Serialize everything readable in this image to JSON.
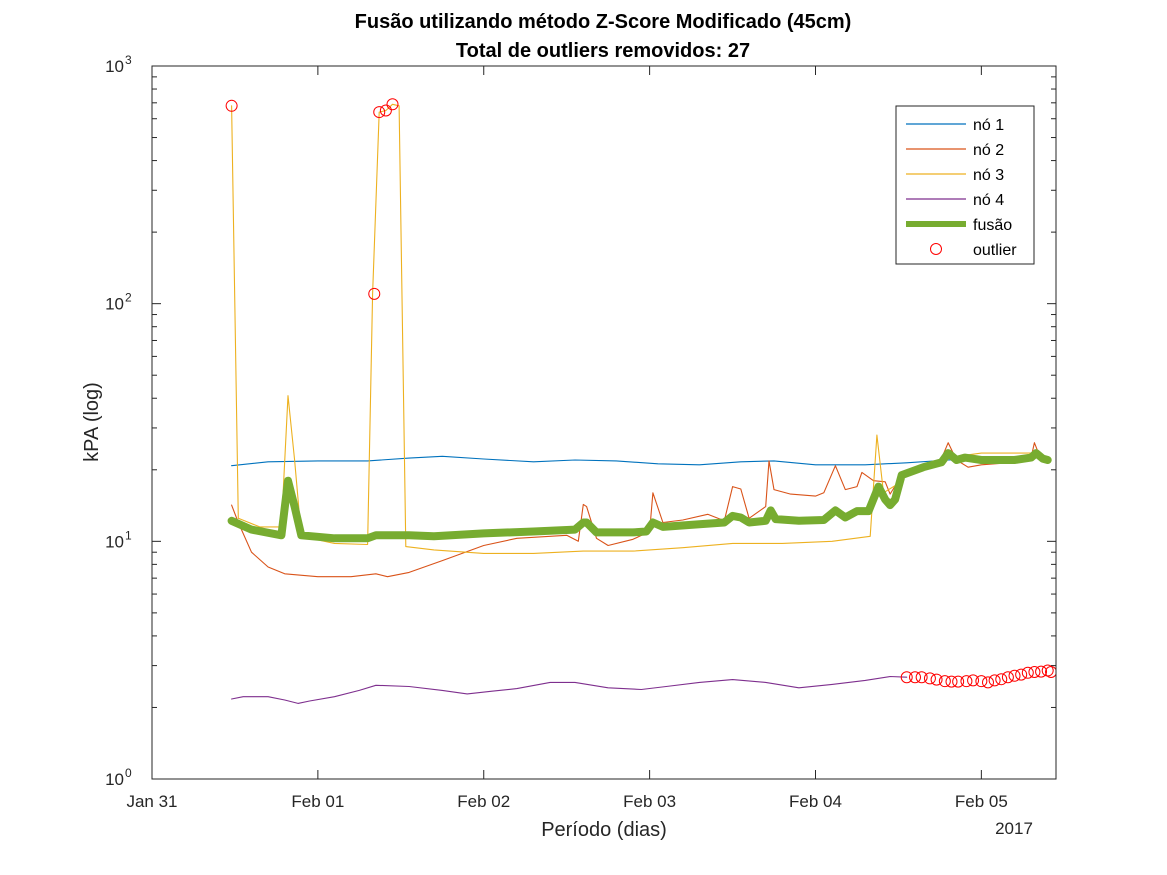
{
  "chart_data": {
    "type": "line",
    "title": "Fusão utilizando método Z-Score Modificado (45cm)",
    "subtitle": "Total de outliers removidos: 27",
    "xlabel": "Período (dias)",
    "ylabel": "kPA (log)",
    "x_axis_year": "2017",
    "y_scale": "log",
    "x_units": "days since Jan 31 00:00",
    "xlim": [
      0,
      5.45
    ],
    "ylim": [
      1,
      1000
    ],
    "grid": false,
    "legend_placement": "top-right",
    "x_ticks": [
      {
        "value": 0,
        "label": "Jan 31"
      },
      {
        "value": 1,
        "label": "Feb 01"
      },
      {
        "value": 2,
        "label": "Feb 02"
      },
      {
        "value": 3,
        "label": "Feb 03"
      },
      {
        "value": 4,
        "label": "Feb 04"
      },
      {
        "value": 5,
        "label": "Feb 05"
      }
    ],
    "y_ticks": [
      {
        "value": 1,
        "base": "10",
        "exp": "0"
      },
      {
        "value": 10,
        "base": "10",
        "exp": "1"
      },
      {
        "value": 100,
        "base": "10",
        "exp": "2"
      },
      {
        "value": 1000,
        "base": "10",
        "exp": "3"
      }
    ],
    "series": [
      {
        "name": "nó 1",
        "color": "#0072BD",
        "style": "line",
        "points": [
          [
            0.48,
            20.8
          ],
          [
            0.7,
            21.6
          ],
          [
            1.0,
            21.8
          ],
          [
            1.3,
            21.8
          ],
          [
            1.55,
            22.4
          ],
          [
            1.75,
            22.8
          ],
          [
            2.0,
            22.2
          ],
          [
            2.3,
            21.6
          ],
          [
            2.55,
            22.0
          ],
          [
            2.8,
            21.8
          ],
          [
            3.05,
            21.2
          ],
          [
            3.3,
            21.0
          ],
          [
            3.55,
            21.6
          ],
          [
            3.75,
            21.8
          ],
          [
            4.0,
            21.0
          ],
          [
            4.3,
            21.0
          ],
          [
            4.55,
            21.4
          ],
          [
            4.8,
            22.0
          ],
          [
            5.05,
            22.2
          ],
          [
            5.3,
            22.6
          ],
          [
            5.4,
            22.4
          ]
        ]
      },
      {
        "name": "nó 2",
        "color": "#D95319",
        "style": "line",
        "points": [
          [
            0.48,
            14.2
          ],
          [
            0.52,
            12.0
          ],
          [
            0.6,
            9.0
          ],
          [
            0.7,
            7.8
          ],
          [
            0.8,
            7.3
          ],
          [
            1.0,
            7.1
          ],
          [
            1.2,
            7.1
          ],
          [
            1.35,
            7.3
          ],
          [
            1.42,
            7.1
          ],
          [
            1.55,
            7.4
          ],
          [
            1.75,
            8.3
          ],
          [
            2.0,
            9.6
          ],
          [
            2.2,
            10.3
          ],
          [
            2.5,
            10.6
          ],
          [
            2.57,
            10.0
          ],
          [
            2.6,
            14.3
          ],
          [
            2.62,
            14.0
          ],
          [
            2.68,
            10.3
          ],
          [
            2.75,
            9.6
          ],
          [
            2.9,
            10.2
          ],
          [
            3.0,
            11.0
          ],
          [
            3.02,
            16.0
          ],
          [
            3.08,
            12.0
          ],
          [
            3.2,
            12.3
          ],
          [
            3.35,
            13.0
          ],
          [
            3.45,
            12.2
          ],
          [
            3.5,
            17.0
          ],
          [
            3.55,
            16.6
          ],
          [
            3.6,
            12.5
          ],
          [
            3.7,
            14.0
          ],
          [
            3.72,
            21.8
          ],
          [
            3.75,
            16.5
          ],
          [
            3.85,
            15.8
          ],
          [
            4.0,
            15.5
          ],
          [
            4.05,
            16.0
          ],
          [
            4.12,
            20.8
          ],
          [
            4.18,
            16.5
          ],
          [
            4.25,
            17.0
          ],
          [
            4.28,
            19.5
          ],
          [
            4.35,
            18.0
          ],
          [
            4.42,
            17.8
          ],
          [
            4.45,
            15.8
          ],
          [
            4.52,
            19.0
          ],
          [
            4.65,
            20.0
          ],
          [
            4.75,
            21.5
          ],
          [
            4.8,
            26.0
          ],
          [
            4.85,
            22.0
          ],
          [
            4.92,
            20.5
          ],
          [
            5.0,
            21.0
          ],
          [
            5.2,
            21.5
          ],
          [
            5.3,
            22.5
          ],
          [
            5.32,
            26.0
          ],
          [
            5.35,
            23.0
          ],
          [
            5.4,
            21.5
          ]
        ]
      },
      {
        "name": "nó 3",
        "color": "#EDB120",
        "style": "line",
        "points": [
          [
            0.48,
            680
          ],
          [
            0.52,
            12.5
          ],
          [
            0.65,
            11.5
          ],
          [
            0.78,
            11.5
          ],
          [
            0.82,
            41.0
          ],
          [
            0.86,
            22.0
          ],
          [
            0.9,
            10.5
          ],
          [
            1.1,
            9.8
          ],
          [
            1.3,
            9.7
          ],
          [
            1.33,
            110
          ],
          [
            1.37,
            640
          ],
          [
            1.41,
            650
          ],
          [
            1.45,
            690
          ],
          [
            1.49,
            680
          ],
          [
            1.53,
            9.5
          ],
          [
            1.7,
            9.2
          ],
          [
            2.0,
            8.9
          ],
          [
            2.3,
            8.9
          ],
          [
            2.6,
            9.1
          ],
          [
            2.9,
            9.1
          ],
          [
            3.2,
            9.4
          ],
          [
            3.5,
            9.8
          ],
          [
            3.8,
            9.8
          ],
          [
            4.1,
            10.0
          ],
          [
            4.33,
            10.5
          ],
          [
            4.37,
            28.0
          ],
          [
            4.41,
            16.0
          ],
          [
            4.5,
            17.5
          ],
          [
            4.6,
            20.5
          ],
          [
            4.8,
            22.5
          ],
          [
            5.0,
            23.5
          ],
          [
            5.3,
            23.5
          ],
          [
            5.4,
            22.5
          ]
        ]
      },
      {
        "name": "nó 4",
        "color": "#7E2F8E",
        "style": "line",
        "points": [
          [
            0.48,
            2.17
          ],
          [
            0.55,
            2.22
          ],
          [
            0.7,
            2.22
          ],
          [
            0.8,
            2.15
          ],
          [
            0.88,
            2.08
          ],
          [
            0.95,
            2.13
          ],
          [
            1.1,
            2.22
          ],
          [
            1.25,
            2.36
          ],
          [
            1.35,
            2.48
          ],
          [
            1.55,
            2.45
          ],
          [
            1.75,
            2.36
          ],
          [
            1.9,
            2.28
          ],
          [
            2.05,
            2.34
          ],
          [
            2.2,
            2.4
          ],
          [
            2.4,
            2.55
          ],
          [
            2.55,
            2.55
          ],
          [
            2.75,
            2.42
          ],
          [
            2.95,
            2.38
          ],
          [
            3.1,
            2.45
          ],
          [
            3.3,
            2.55
          ],
          [
            3.5,
            2.62
          ],
          [
            3.7,
            2.55
          ],
          [
            3.9,
            2.42
          ],
          [
            4.1,
            2.5
          ],
          [
            4.3,
            2.6
          ],
          [
            4.45,
            2.7
          ],
          [
            4.55,
            2.68
          ]
        ]
      },
      {
        "name": "fusão",
        "color": "#77AC30",
        "style": "thick",
        "points": [
          [
            0.48,
            12.2
          ],
          [
            0.6,
            11.2
          ],
          [
            0.78,
            10.6
          ],
          [
            0.82,
            18.0
          ],
          [
            0.86,
            14.0
          ],
          [
            0.9,
            10.6
          ],
          [
            1.1,
            10.3
          ],
          [
            1.3,
            10.3
          ],
          [
            1.35,
            10.6
          ],
          [
            1.55,
            10.6
          ],
          [
            1.7,
            10.5
          ],
          [
            2.0,
            10.8
          ],
          [
            2.3,
            11.0
          ],
          [
            2.55,
            11.2
          ],
          [
            2.6,
            12.0
          ],
          [
            2.62,
            12.0
          ],
          [
            2.68,
            10.9
          ],
          [
            2.9,
            10.9
          ],
          [
            2.98,
            11.0
          ],
          [
            3.02,
            12.0
          ],
          [
            3.08,
            11.5
          ],
          [
            3.3,
            11.8
          ],
          [
            3.45,
            12.0
          ],
          [
            3.5,
            12.8
          ],
          [
            3.55,
            12.6
          ],
          [
            3.6,
            12.0
          ],
          [
            3.7,
            12.2
          ],
          [
            3.73,
            13.5
          ],
          [
            3.76,
            12.4
          ],
          [
            3.9,
            12.2
          ],
          [
            4.05,
            12.3
          ],
          [
            4.12,
            13.5
          ],
          [
            4.18,
            12.6
          ],
          [
            4.25,
            13.4
          ],
          [
            4.32,
            13.4
          ],
          [
            4.38,
            17.0
          ],
          [
            4.42,
            15.0
          ],
          [
            4.45,
            14.2
          ],
          [
            4.48,
            15.0
          ],
          [
            4.52,
            19.0
          ],
          [
            4.65,
            20.5
          ],
          [
            4.76,
            21.5
          ],
          [
            4.8,
            23.5
          ],
          [
            4.85,
            22.0
          ],
          [
            4.9,
            22.5
          ],
          [
            5.0,
            22.0
          ],
          [
            5.2,
            22.0
          ],
          [
            5.3,
            22.5
          ],
          [
            5.33,
            23.5
          ],
          [
            5.37,
            22.3
          ],
          [
            5.4,
            22.0
          ]
        ]
      },
      {
        "name": "outlier",
        "color": "#FF0000",
        "style": "markers",
        "points": [
          [
            0.48,
            680
          ],
          [
            1.34,
            110
          ],
          [
            1.37,
            640
          ],
          [
            1.41,
            650
          ],
          [
            1.45,
            690
          ],
          [
            4.55,
            2.68
          ],
          [
            4.6,
            2.68
          ],
          [
            4.64,
            2.68
          ],
          [
            4.69,
            2.65
          ],
          [
            4.73,
            2.62
          ],
          [
            4.78,
            2.58
          ],
          [
            4.82,
            2.57
          ],
          [
            4.86,
            2.57
          ],
          [
            4.91,
            2.58
          ],
          [
            4.95,
            2.6
          ],
          [
            5.0,
            2.58
          ],
          [
            5.04,
            2.55
          ],
          [
            5.08,
            2.6
          ],
          [
            5.12,
            2.63
          ],
          [
            5.16,
            2.68
          ],
          [
            5.2,
            2.72
          ],
          [
            5.24,
            2.75
          ],
          [
            5.28,
            2.8
          ],
          [
            5.32,
            2.82
          ],
          [
            5.36,
            2.83
          ],
          [
            5.4,
            2.86
          ],
          [
            5.42,
            2.82
          ]
        ]
      }
    ]
  }
}
